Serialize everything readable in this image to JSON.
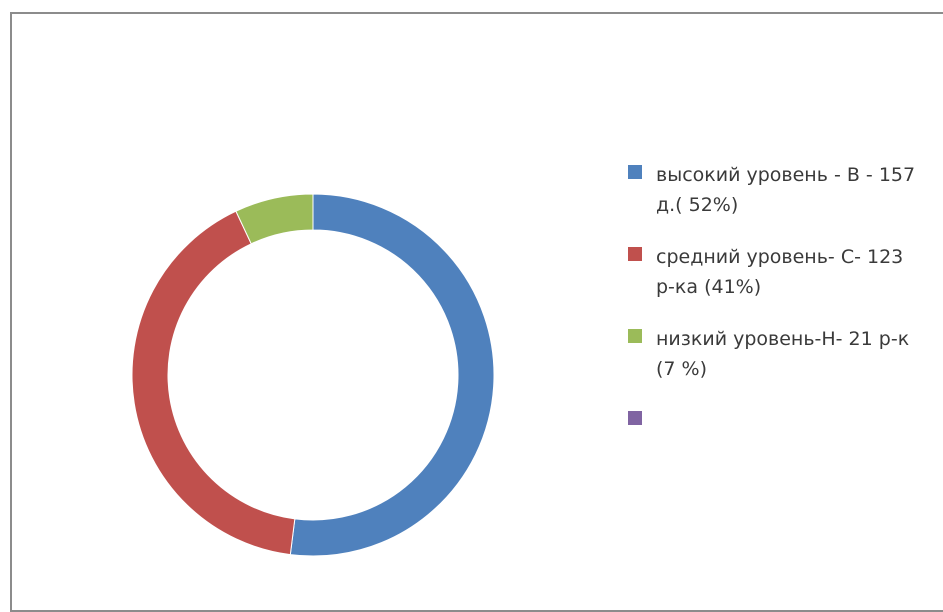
{
  "chart_data": {
    "type": "pie",
    "variant": "donut",
    "categories": [
      "высокий уровень - В - 157 д.( 52%)",
      "средний уровень- С- 123 р-ка (41%)",
      "низкий уровень-Н- 21 р-к (7 %)",
      ""
    ],
    "values": [
      52,
      41,
      7,
      0
    ],
    "colors": [
      "#4f81bd",
      "#c0504d",
      "#9bbb59",
      "#8064a2"
    ],
    "legend_position": "right",
    "title": ""
  }
}
